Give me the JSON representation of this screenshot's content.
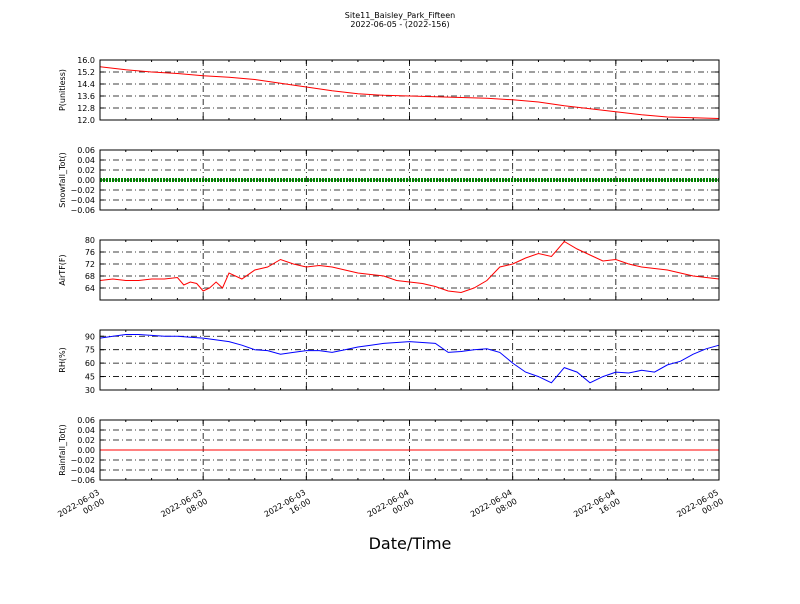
{
  "figure": {
    "title": "Site11_Baisley_Park_Fifteen",
    "subtitle": "2022-06-05 - (2022-156)",
    "xlabel": "Date/Time",
    "x_tick_labels": [
      [
        "2022-06-03",
        "00:00"
      ],
      [
        "2022-06-03",
        "08:00"
      ],
      [
        "2022-06-03",
        "16:00"
      ],
      [
        "2022-06-04",
        "00:00"
      ],
      [
        "2022-06-04",
        "08:00"
      ],
      [
        "2022-06-04",
        "16:00"
      ],
      [
        "2022-06-05",
        "00:00"
      ]
    ],
    "colors": {
      "red": "#ff0000",
      "green": "#008000",
      "blue": "#0000ff"
    }
  },
  "chart_data": [
    {
      "type": "line",
      "ylabel": "P(unitless)",
      "color": "#ff0000",
      "marker": "line",
      "ylim": [
        12.0,
        16.0
      ],
      "yticks": [
        12.0,
        12.8,
        13.6,
        14.4,
        15.2,
        16.0
      ],
      "ytick_labels": [
        "12.0",
        "12.8",
        "13.6",
        "14.4",
        "15.2",
        "16.0"
      ],
      "grid": true,
      "x_hours": [
        0,
        2,
        4,
        6,
        8,
        10,
        12,
        14,
        16,
        18,
        20,
        22,
        24,
        26,
        28,
        30,
        32,
        34,
        36,
        38,
        40,
        42,
        44,
        46,
        48
      ],
      "values": [
        15.55,
        15.35,
        15.2,
        15.1,
        14.95,
        14.85,
        14.7,
        14.45,
        14.2,
        13.95,
        13.75,
        13.65,
        13.6,
        13.55,
        13.5,
        13.45,
        13.35,
        13.2,
        12.95,
        12.75,
        12.55,
        12.35,
        12.2,
        12.15,
        12.1
      ]
    },
    {
      "type": "line",
      "ylabel": "Snowfall_Tot()",
      "color": "#008000",
      "marker": "dots",
      "ylim": [
        -0.06,
        0.06
      ],
      "yticks": [
        -0.06,
        -0.04,
        -0.02,
        0.0,
        0.02,
        0.04,
        0.06
      ],
      "ytick_labels": [
        "−0.06",
        "−0.04",
        "−0.02",
        "0.00",
        "0.02",
        "0.04",
        "0.06"
      ],
      "grid": true,
      "x_hours": [
        0,
        48
      ],
      "values": [
        0.0,
        0.0
      ]
    },
    {
      "type": "line",
      "ylabel": "AirTF(F)",
      "color": "#ff0000",
      "marker": "line",
      "ylim": [
        60,
        80
      ],
      "yticks": [
        64,
        68,
        72,
        76,
        80
      ],
      "ytick_labels": [
        "64",
        "68",
        "72",
        "76",
        "80"
      ],
      "grid": true,
      "x_hours": [
        0,
        1,
        2,
        3,
        4,
        5,
        6,
        6.5,
        7,
        7.5,
        8,
        8.5,
        9,
        9.5,
        10,
        11,
        12,
        13,
        14,
        15,
        16,
        17,
        18,
        19,
        20,
        21,
        22,
        23,
        24,
        25,
        26,
        27,
        28,
        29,
        30,
        31,
        32,
        33,
        34,
        35,
        36,
        37,
        38,
        39,
        40,
        41,
        42,
        43,
        44,
        45,
        46,
        47,
        48
      ],
      "values": [
        66.5,
        67,
        66.5,
        66.5,
        67,
        67,
        67.5,
        65,
        66,
        65.5,
        63,
        64,
        66,
        64,
        69,
        67,
        70,
        71,
        73.5,
        72,
        71,
        71.5,
        71,
        70,
        69,
        68.5,
        68,
        66.5,
        66,
        65.5,
        64.5,
        63,
        62.5,
        64,
        66.5,
        71,
        72,
        74,
        75.5,
        74.5,
        79.5,
        77,
        75,
        73,
        73.5,
        72,
        71,
        70.5,
        70,
        69,
        68,
        67.5,
        67
      ]
    },
    {
      "type": "line",
      "ylabel": "RH(%)",
      "color": "#0000ff",
      "marker": "line",
      "ylim": [
        30,
        97
      ],
      "yticks": [
        30,
        45,
        60,
        75,
        90
      ],
      "ytick_labels": [
        "30",
        "45",
        "60",
        "75",
        "90"
      ],
      "grid": true,
      "x_hours": [
        0,
        1,
        2,
        3,
        4,
        5,
        6,
        7,
        8,
        9,
        10,
        11,
        12,
        13,
        14,
        15,
        16,
        17,
        18,
        19,
        20,
        21,
        22,
        23,
        24,
        25,
        26,
        27,
        28,
        29,
        30,
        31,
        32,
        33,
        34,
        35,
        36,
        37,
        38,
        39,
        40,
        41,
        42,
        43,
        44,
        45,
        46,
        47,
        48
      ],
      "values": [
        88,
        90,
        92,
        92,
        91,
        90,
        90,
        89,
        88,
        86,
        84,
        80,
        75,
        74,
        70,
        72,
        74,
        74,
        72,
        75,
        78,
        80,
        82,
        83,
        84,
        83,
        82,
        72,
        73,
        75,
        76,
        72,
        60,
        50,
        45,
        38,
        55,
        50,
        38,
        45,
        50,
        49,
        52,
        50,
        58,
        62,
        70,
        76,
        80
      ]
    },
    {
      "type": "line",
      "ylabel": "Rainfall_Tot()",
      "color": "#ff0000",
      "marker": "line",
      "ylim": [
        -0.06,
        0.06
      ],
      "yticks": [
        -0.06,
        -0.04,
        -0.02,
        0.0,
        0.02,
        0.04,
        0.06
      ],
      "ytick_labels": [
        "−0.06",
        "−0.04",
        "−0.02",
        "0.00",
        "0.02",
        "0.04",
        "0.06"
      ],
      "grid": true,
      "x_hours": [
        0,
        48
      ],
      "values": [
        0.0,
        0.0
      ]
    }
  ]
}
